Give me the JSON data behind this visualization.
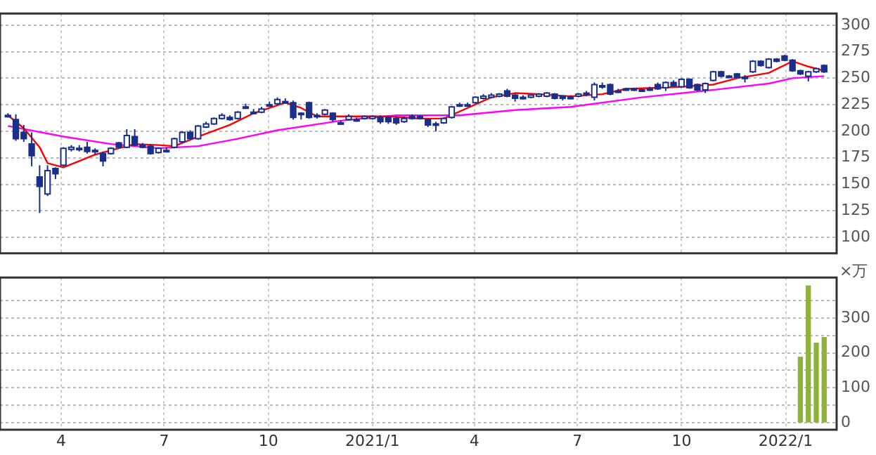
{
  "chart_data": [
    {
      "type": "candlestick",
      "color": "#1a2f8a",
      "tick_labels": "y",
      "grid": true,
      "colors": [
        "#1a2f8a",
        "#1a2f8a",
        "#1a2f8a",
        "#1a2f8a",
        "#1a2f8a",
        "#ffffff",
        "#1a2f8a",
        "#ffffff",
        "#ffffff",
        "#1a2f8a",
        "#1a2f8a",
        "#1a2f8a",
        "#1a2f8a",
        "#ffffff",
        "#1a2f8a",
        "#ffffff",
        "#1a2f8a",
        "#1a2f8a",
        "#1a2f8a",
        "#ffffff",
        "#1a2f8a",
        "#ffffff",
        "#ffffff",
        "#1a2f8a",
        "#ffffff",
        "#ffffff",
        "#ffffff",
        "#ffffff",
        "#1a2f8a",
        "#ffffff",
        "#1a2f8a",
        "#1a2f8a",
        "#ffffff",
        "#1a2f8a",
        "#ffffff",
        "#1a2f8a",
        "#1a2f8a",
        "#1a2f8a",
        "#1a2f8a",
        "#1a2f8a",
        "#ffffff",
        "#1a2f8a",
        "#1a2f8a",
        "#ffffff",
        "#1a2f8a",
        "#ffffff",
        "#ffffff",
        "#1a2f8a",
        "#1a2f8a",
        "#1a2f8a",
        "#ffffff",
        "#1a2f8a",
        "#1a2f8a",
        "#1a2f8a",
        "#1a2f8a",
        "#ffffff",
        "#ffffff",
        "#ffffff",
        "#1a2f8a",
        "#ffffff",
        "#ffffff",
        "#ffffff",
        "#ffffff",
        "#1a2f8a",
        "#1a2f8a",
        "#1a2f8a",
        "#ffffff",
        "#ffffff",
        "#ffffff",
        "#1a2f8a",
        "#1a2f8a",
        "#1a2f8a",
        "#ffffff",
        "#1a2f8a",
        "#ffffff",
        "#1a2f8a",
        "#1a2f8a",
        "#1a2f8a",
        "#1a2f8a",
        "#1a2f8a",
        "#1a2f8a",
        "#1a2f8a",
        "#1a2f8a",
        "#ffffff",
        "#1a2f8a",
        "#ffffff",
        "#1a2f8a",
        "#1a2f8a",
        "#ffffff",
        "#ffffff",
        "#1a2f8a",
        "#1a2f8a",
        "#1a2f8a",
        "#1a2f8a",
        "#ffffff",
        "#1a2f8a",
        "#ffffff",
        "#1a2f8a",
        "#1a2f8a",
        "#1a2f8a",
        "#1a2f8a",
        "#ffffff",
        "#ffffff",
        "#1a2f8a"
      ],
      "x": [
        "2020-02-14",
        "2020-02-21",
        "2020-02-28",
        "2020-03-06",
        "2020-03-13",
        "2020-03-20",
        "2020-03-27",
        "2020-04-03",
        "2020-04-10",
        "2020-04-17",
        "2020-04-24",
        "2020-05-01",
        "2020-05-08",
        "2020-05-15",
        "2020-05-22",
        "2020-05-29",
        "2020-06-05",
        "2020-06-12",
        "2020-06-19",
        "2020-06-26",
        "2020-07-03",
        "2020-07-10",
        "2020-07-17",
        "2020-07-24",
        "2020-07-31",
        "2020-08-07",
        "2020-08-14",
        "2020-08-21",
        "2020-08-28",
        "2020-09-04",
        "2020-09-11",
        "2020-09-18",
        "2020-09-25",
        "2020-10-02",
        "2020-10-09",
        "2020-10-16",
        "2020-10-23",
        "2020-10-30",
        "2020-11-06",
        "2020-11-13",
        "2020-11-20",
        "2020-11-27",
        "2020-12-04",
        "2020-12-11",
        "2020-12-18",
        "2020-12-25",
        "2021-01-01",
        "2021-01-08",
        "2021-01-15",
        "2021-01-22",
        "2021-01-29",
        "2021-02-05",
        "2021-02-12",
        "2021-02-19",
        "2021-02-26",
        "2021-03-05",
        "2021-03-12",
        "2021-03-19",
        "2021-03-26",
        "2021-04-02",
        "2021-04-09",
        "2021-04-16",
        "2021-04-23",
        "2021-04-30",
        "2021-05-07",
        "2021-05-14",
        "2021-05-21",
        "2021-05-28",
        "2021-06-04",
        "2021-06-11",
        "2021-06-18",
        "2021-06-25",
        "2021-07-02",
        "2021-07-09",
        "2021-07-16",
        "2021-07-23",
        "2021-07-30",
        "2021-08-06",
        "2021-08-13",
        "2021-08-20",
        "2021-08-27",
        "2021-09-03",
        "2021-09-10",
        "2021-09-17",
        "2021-09-24",
        "2021-10-01",
        "2021-10-08",
        "2021-10-15",
        "2021-10-22",
        "2021-10-29",
        "2021-11-05",
        "2021-11-12",
        "2021-11-19",
        "2021-11-26",
        "2021-12-03",
        "2021-12-10",
        "2021-12-17",
        "2021-12-24",
        "2021-12-31",
        "2022-01-07",
        "2022-01-14",
        "2022-01-21",
        "2022-01-28",
        "2022-02-04"
      ],
      "ohlc": [
        [
          215,
          217,
          213,
          215
        ],
        [
          211,
          216,
          191,
          193
        ],
        [
          199,
          206,
          190,
          193
        ],
        [
          188,
          199,
          167,
          177
        ],
        [
          157,
          168,
          123,
          148
        ],
        [
          141,
          168,
          139,
          163
        ],
        [
          165,
          166,
          155,
          160
        ],
        [
          168,
          185,
          167,
          184
        ],
        [
          183,
          187,
          181,
          185
        ],
        [
          184,
          187,
          181,
          184
        ],
        [
          185,
          190,
          179,
          181
        ],
        [
          182,
          184,
          178,
          182
        ],
        [
          179,
          181,
          167,
          172
        ],
        [
          179,
          185,
          178,
          184
        ],
        [
          189,
          190,
          184,
          185
        ],
        [
          185,
          202,
          184,
          196
        ],
        [
          195,
          202,
          186,
          187
        ],
        [
          187,
          189,
          184,
          185
        ],
        [
          186,
          188,
          178,
          179
        ],
        [
          180,
          185,
          179,
          184
        ],
        [
          182,
          185,
          180,
          182
        ],
        [
          185,
          194,
          184,
          193
        ],
        [
          190,
          200,
          189,
          199
        ],
        [
          199,
          201,
          192,
          193
        ],
        [
          193,
          206,
          192,
          205
        ],
        [
          204,
          209,
          203,
          207
        ],
        [
          207,
          213,
          206,
          212
        ],
        [
          212,
          217,
          211,
          215
        ],
        [
          213,
          215,
          210,
          211
        ],
        [
          212,
          219,
          211,
          218
        ],
        [
          223,
          226,
          221,
          223
        ],
        [
          218,
          221,
          216,
          218
        ],
        [
          218,
          223,
          217,
          221
        ],
        [
          225,
          228,
          223,
          225
        ],
        [
          226,
          232,
          225,
          230
        ],
        [
          228,
          231,
          226,
          228
        ],
        [
          227,
          229,
          211,
          213
        ],
        [
          217,
          218,
          211,
          217
        ],
        [
          227,
          228,
          212,
          213
        ],
        [
          215,
          217,
          212,
          214
        ],
        [
          216,
          221,
          215,
          220
        ],
        [
          217,
          218,
          209,
          211
        ],
        [
          208,
          210,
          206,
          208
        ],
        [
          211,
          216,
          210,
          214
        ],
        [
          211,
          213,
          209,
          211
        ],
        [
          212,
          215,
          211,
          214
        ],
        [
          212,
          215,
          211,
          214
        ],
        [
          213,
          215,
          207,
          209
        ],
        [
          213,
          214,
          207,
          209
        ],
        [
          212,
          214,
          206,
          208
        ],
        [
          209,
          214,
          208,
          212
        ],
        [
          214,
          216,
          211,
          212
        ],
        [
          214,
          215,
          211,
          212
        ],
        [
          211,
          212,
          204,
          206
        ],
        [
          207,
          209,
          200,
          207
        ],
        [
          208,
          213,
          207,
          212
        ],
        [
          213,
          224,
          212,
          223
        ],
        [
          224,
          227,
          223,
          225
        ],
        [
          225,
          227,
          223,
          225
        ],
        [
          227,
          233,
          226,
          232
        ],
        [
          231,
          235,
          230,
          233
        ],
        [
          232,
          236,
          231,
          234
        ],
        [
          233,
          236,
          232,
          235
        ],
        [
          238,
          240,
          232,
          233
        ],
        [
          234,
          235,
          228,
          231
        ],
        [
          232,
          234,
          230,
          232
        ],
        [
          232,
          235,
          231,
          234
        ],
        [
          233,
          236,
          232,
          235
        ],
        [
          233,
          237,
          232,
          236
        ],
        [
          235,
          236,
          230,
          231
        ],
        [
          233,
          234,
          229,
          231
        ],
        [
          232,
          234,
          230,
          232
        ],
        [
          233,
          236,
          232,
          235
        ],
        [
          236,
          238,
          233,
          236
        ],
        [
          232,
          246,
          229,
          244
        ],
        [
          243,
          246,
          240,
          243
        ],
        [
          244,
          245,
          234,
          235
        ],
        [
          238,
          240,
          236,
          238
        ],
        [
          240,
          241,
          238,
          240
        ],
        [
          240,
          241,
          238,
          240
        ],
        [
          239,
          240,
          237,
          239
        ],
        [
          240,
          242,
          238,
          240
        ],
        [
          244,
          246,
          239,
          240
        ],
        [
          241,
          247,
          238,
          246
        ],
        [
          246,
          248,
          242,
          243
        ],
        [
          242,
          250,
          241,
          249
        ],
        [
          249,
          250,
          240,
          241
        ],
        [
          244,
          245,
          238,
          239
        ],
        [
          239,
          246,
          236,
          245
        ],
        [
          248,
          257,
          247,
          256
        ],
        [
          256,
          257,
          251,
          252
        ],
        [
          252,
          253,
          250,
          252
        ],
        [
          254,
          255,
          250,
          251
        ],
        [
          251,
          253,
          246,
          251
        ],
        [
          256,
          267,
          255,
          266
        ],
        [
          266,
          267,
          261,
          262
        ],
        [
          260,
          269,
          259,
          268
        ],
        [
          268,
          269,
          265,
          266
        ],
        [
          271,
          272,
          266,
          267
        ],
        [
          267,
          268,
          256,
          257
        ],
        [
          257,
          258,
          253,
          254
        ],
        [
          252,
          257,
          247,
          256
        ],
        [
          256,
          260,
          255,
          259
        ],
        [
          262,
          263,
          255,
          256
        ]
      ],
      "series": [
        {
          "type": "line",
          "color": "#ff0000",
          "x": [
            "2020-02-14",
            "2020-02-28",
            "2020-03-13",
            "2020-03-20",
            "2020-04-03",
            "2020-04-17",
            "2020-05-01",
            "2020-05-15",
            "2020-06-05",
            "2020-06-26",
            "2020-07-10",
            "2020-07-31",
            "2020-08-28",
            "2020-09-18",
            "2020-10-16",
            "2020-10-30",
            "2020-11-13",
            "2020-12-18",
            "2021-01-15",
            "2021-02-12",
            "2021-03-05",
            "2021-03-26",
            "2021-04-16",
            "2021-05-07",
            "2021-05-28",
            "2021-06-25",
            "2021-07-23",
            "2021-08-13",
            "2021-09-10",
            "2021-10-01",
            "2021-10-29",
            "2021-11-19",
            "2021-12-17",
            "2022-01-07",
            "2022-01-21",
            "2022-02-04"
          ],
          "values": [
            215,
            203,
            185,
            170,
            166,
            172,
            178,
            182,
            188,
            187,
            186,
            195,
            206,
            217,
            227,
            222,
            214,
            214,
            214,
            212,
            212,
            222,
            232,
            236,
            235,
            233,
            235,
            240,
            241,
            242,
            244,
            250,
            255,
            266,
            261,
            257
          ]
        },
        {
          "type": "line",
          "color": "#ff00ff",
          "x": [
            "2020-02-14",
            "2020-04-03",
            "2020-05-15",
            "2020-06-26",
            "2020-07-31",
            "2020-09-04",
            "2020-10-09",
            "2020-12-04",
            "2021-01-22",
            "2021-03-19",
            "2021-05-07",
            "2021-06-25",
            "2021-08-27",
            "2021-10-29",
            "2021-12-17",
            "2022-01-07",
            "2022-02-04"
          ],
          "values": [
            205,
            195,
            188,
            184,
            186,
            193,
            201,
            210,
            215,
            215,
            220,
            223,
            232,
            239,
            245,
            250,
            252
          ]
        }
      ],
      "xlim": [
        "2020-02-07",
        "2022-02-15"
      ],
      "xticks": [
        {
          "value": "2020-04-01",
          "label": null
        },
        {
          "value": "2020-07-01",
          "label": null
        },
        {
          "value": "2020-10-01",
          "label": null
        },
        {
          "value": "2021-01-01",
          "label": null
        },
        {
          "value": "2021-04-01",
          "label": null
        },
        {
          "value": "2021-07-01",
          "label": null
        },
        {
          "value": "2021-10-01",
          "label": null
        },
        {
          "value": "2022-01-01",
          "label": null
        }
      ],
      "ylim": [
        85,
        311
      ],
      "yticks": [
        100,
        125,
        150,
        175,
        200,
        225,
        250,
        275,
        300
      ]
    },
    {
      "type": "bar",
      "color": "#8db33a",
      "grid": true,
      "ylabel": "×万",
      "x": [
        "2022-01-14",
        "2022-01-21",
        "2022-01-28",
        "2022-02-04"
      ],
      "values": [
        188,
        392,
        228,
        244
      ],
      "xlim": [
        "2020-02-07",
        "2022-02-15"
      ],
      "xticks": [
        {
          "value": "2020-04-01",
          "label": "4"
        },
        {
          "value": "2020-07-01",
          "label": "7"
        },
        {
          "value": "2020-10-01",
          "label": "10"
        },
        {
          "value": "2021-01-01",
          "label": "2021/1"
        },
        {
          "value": "2021-04-01",
          "label": "4"
        },
        {
          "value": "2021-07-01",
          "label": "7"
        },
        {
          "value": "2021-10-01",
          "label": "10"
        },
        {
          "value": "2022-01-01",
          "label": "2022/1"
        }
      ],
      "ylim": [
        -20,
        416
      ],
      "yticks": [
        0,
        {
          "value": 50,
          "label": null
        },
        100,
        {
          "value": 150,
          "label": null
        },
        200,
        {
          "value": 250,
          "label": null
        },
        300,
        {
          "value": 350,
          "label": null
        }
      ]
    }
  ]
}
